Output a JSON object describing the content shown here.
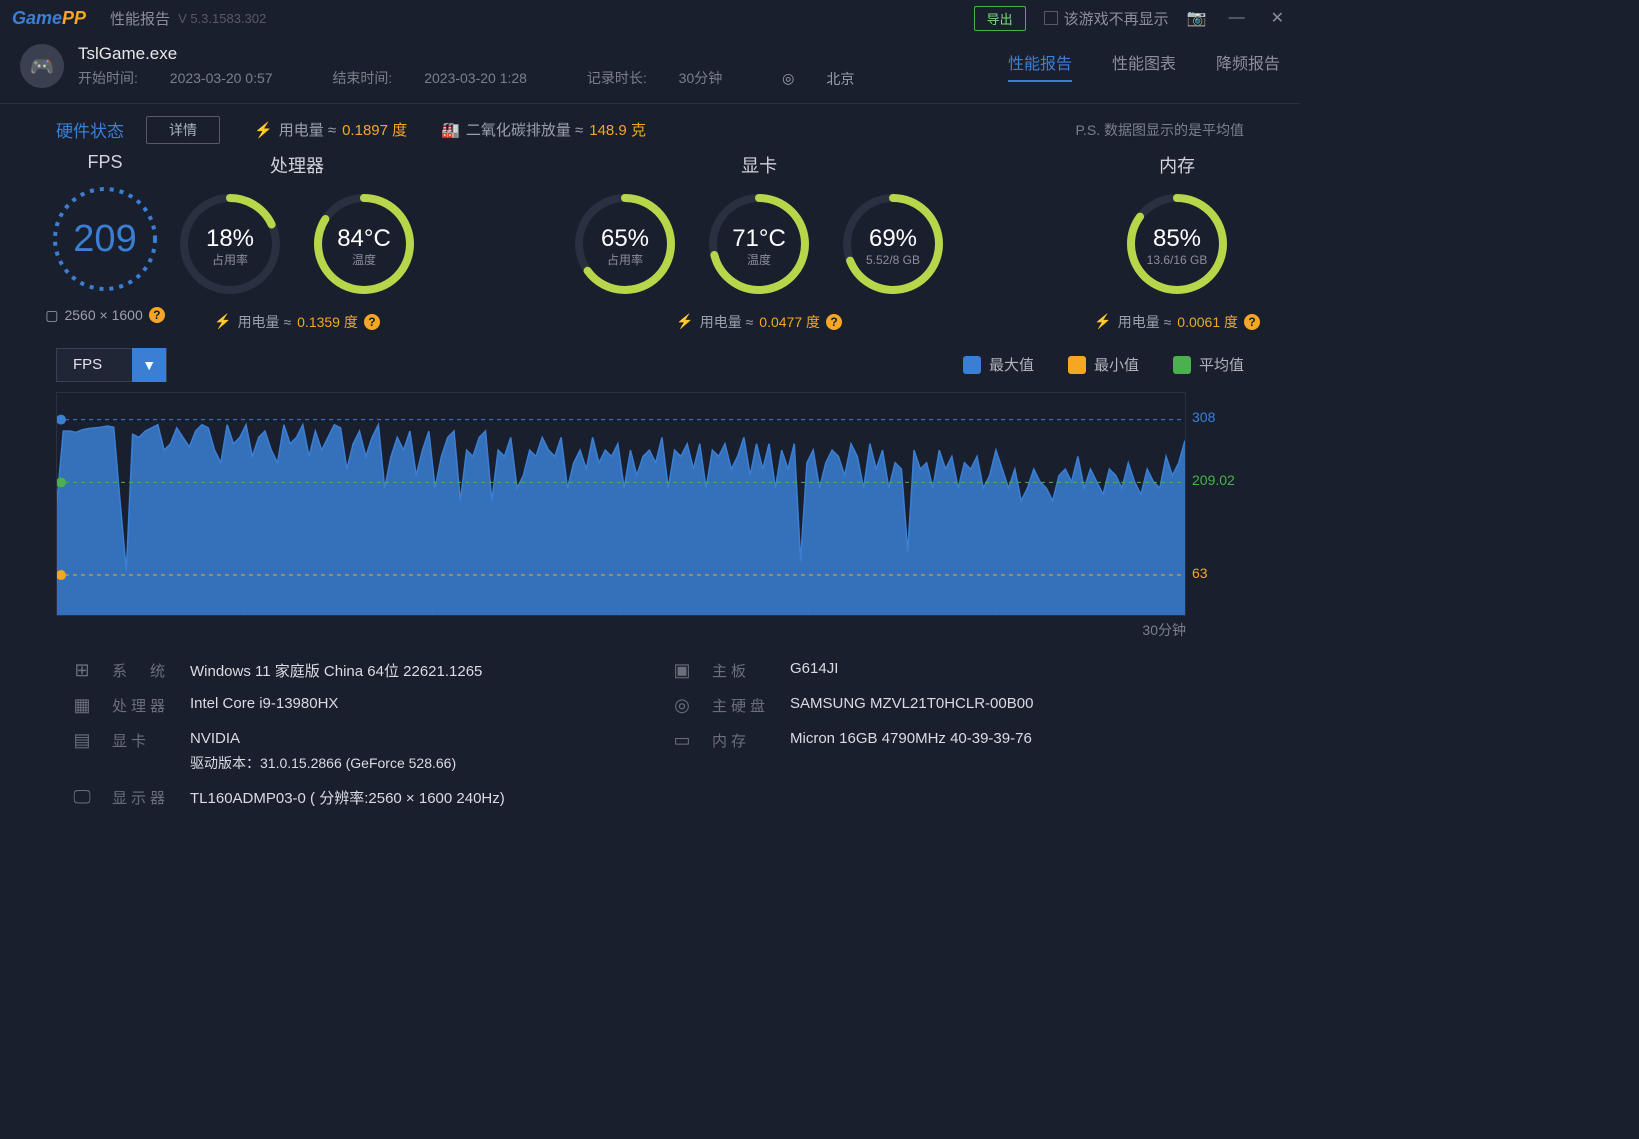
{
  "titlebar": {
    "app_name_a": "Game",
    "app_name_b": "PP",
    "title": "性能报告",
    "version": "V 5.3.1583.302",
    "export_label": "导出",
    "hide_game_label": "该游戏不再显示"
  },
  "session": {
    "exe": "TslGame.exe",
    "start_label": "开始时间:",
    "start_value": "2023-03-20 0:57",
    "end_label": "结束时间:",
    "end_value": "2023-03-20 1:28",
    "duration_label": "记录时长:",
    "duration_value": "30分钟",
    "location": "北京"
  },
  "tabs": {
    "report": "性能报告",
    "chart": "性能图表",
    "throttle": "降频报告"
  },
  "hw": {
    "title": "硬件状态",
    "details": "详情",
    "power_label": "用电量 ≈",
    "power_value": "0.1897 度",
    "co2_label": "二氧化碳排放量 ≈",
    "co2_value": "148.9 克",
    "note": "P.S. 数据图显示的是平均值"
  },
  "gauges": {
    "fps": {
      "title": "FPS",
      "value": "209",
      "resolution": "2560 × 1600"
    },
    "cpu": {
      "title": "处理器",
      "usage": {
        "value": 18,
        "main": "18%",
        "sub": "占用率"
      },
      "temp": {
        "value": 84,
        "main": "84°C",
        "sub": "温度"
      },
      "foot_label": "用电量 ≈",
      "foot_value": "0.1359 度"
    },
    "gpu": {
      "title": "显卡",
      "usage": {
        "value": 65,
        "main": "65%",
        "sub": "占用率"
      },
      "temp": {
        "value": 71,
        "main": "71°C",
        "sub": "温度"
      },
      "vram": {
        "value": 69,
        "main": "69%",
        "sub": "5.52/8 GB"
      },
      "foot_label": "用电量 ≈",
      "foot_value": "0.0477 度"
    },
    "mem": {
      "title": "内存",
      "usage": {
        "value": 85,
        "main": "85%",
        "sub": "13.6/16 GB"
      },
      "foot_label": "用电量 ≈",
      "foot_value": "0.0061 度"
    }
  },
  "chart": {
    "dropdown": "FPS",
    "legend": {
      "max": "最大值",
      "min": "最小值",
      "avg": "平均值"
    },
    "colors": {
      "max": "#3b7fd4",
      "min": "#f5a623",
      "avg": "#4caf50"
    },
    "y_max": 350,
    "max_line": 308,
    "avg_line": 209.02,
    "min_line": 63,
    "duration_label": "30分钟",
    "data": [
      180,
      290,
      290,
      288,
      292,
      294,
      295,
      296,
      298,
      296,
      180,
      70,
      285,
      280,
      290,
      295,
      300,
      260,
      270,
      295,
      280,
      265,
      290,
      300,
      295,
      260,
      240,
      300,
      270,
      280,
      300,
      250,
      280,
      290,
      260,
      240,
      300,
      270,
      280,
      300,
      250,
      290,
      260,
      280,
      300,
      295,
      230,
      270,
      290,
      250,
      280,
      300,
      200,
      250,
      280,
      260,
      290,
      220,
      260,
      290,
      200,
      250,
      280,
      290,
      180,
      260,
      250,
      280,
      290,
      180,
      260,
      250,
      280,
      200,
      220,
      260,
      250,
      280,
      260,
      250,
      280,
      200,
      240,
      260,
      230,
      280,
      240,
      260,
      250,
      270,
      200,
      260,
      220,
      250,
      260,
      240,
      280,
      200,
      260,
      250,
      270,
      230,
      270,
      200,
      260,
      250,
      270,
      230,
      250,
      280,
      220,
      270,
      230,
      270,
      200,
      260,
      230,
      270,
      85,
      240,
      260,
      200,
      240,
      260,
      250,
      220,
      270,
      250,
      200,
      270,
      230,
      260,
      200,
      240,
      230,
      100,
      260,
      230,
      240,
      200,
      260,
      230,
      250,
      200,
      240,
      230,
      250,
      200,
      220,
      260,
      230,
      200,
      230,
      180,
      200,
      230,
      210,
      200,
      180,
      220,
      230,
      210,
      250,
      200,
      230,
      210,
      190,
      230,
      220,
      200,
      240,
      210,
      190,
      230,
      210,
      200,
      250,
      220,
      240,
      275
    ]
  },
  "sysinfo": {
    "os_label": "系　统",
    "os_value": "Windows 11 家庭版 China 64位 22621.1265",
    "mb_label": "主板",
    "mb_value": "G614JI",
    "cpu_label": "处理器",
    "cpu_value": "Intel Core i9-13980HX",
    "disk_label": "主硬盘",
    "disk_value": "SAMSUNG MZVL21T0HCLR-00B00",
    "gpu_label": "显卡",
    "gpu_value": "NVIDIA",
    "gpu_driver": "驱动版本：31.0.15.2866 (GeForce 528.66)",
    "mem_label": "内存",
    "mem_value": "Micron 16GB 4790MHz 40-39-39-76",
    "disp_label": "显示器",
    "disp_value": "TL160ADMP03-0 ( 分辨率:2560 × 1600 240Hz)"
  }
}
